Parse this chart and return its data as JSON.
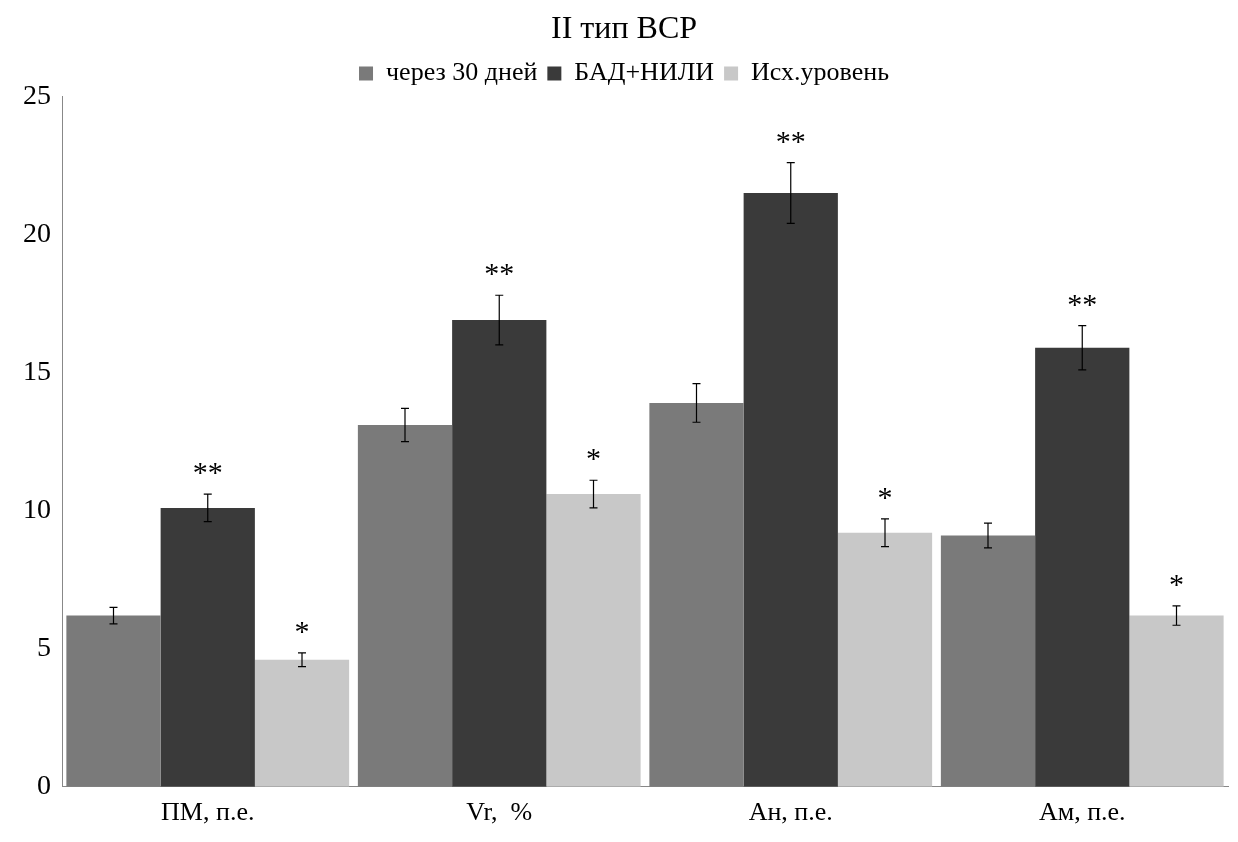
{
  "chart_data": {
    "type": "bar",
    "title": "II тип ВСР",
    "categories": [
      "ПМ, п.е.",
      "Vr,  %",
      "Ан, п.е.",
      "Ам, п.е."
    ],
    "series": [
      {
        "name": "через 30 дней",
        "color": "#7a7a7a",
        "values": [
          6.2,
          13.1,
          13.9,
          9.1
        ],
        "errors": [
          0.3,
          0.6,
          0.7,
          0.45
        ]
      },
      {
        "name": "БАД+НИЛИ",
        "color": "#3a3a3a",
        "values": [
          10.1,
          16.9,
          21.5,
          15.9
        ],
        "errors": [
          0.5,
          0.9,
          1.1,
          0.8
        ]
      },
      {
        "name": "Исх.уровень",
        "color": "#c8c8c8",
        "values": [
          4.6,
          10.6,
          9.2,
          6.2
        ],
        "errors": [
          0.25,
          0.5,
          0.5,
          0.35
        ]
      }
    ],
    "ylim": [
      0,
      25
    ],
    "yticks": [
      0,
      5,
      10,
      15,
      20,
      25
    ],
    "grid": false,
    "legend": "top",
    "annotations": [
      "**",
      "*",
      "**",
      "*",
      "**",
      "*",
      "**",
      "*"
    ]
  }
}
